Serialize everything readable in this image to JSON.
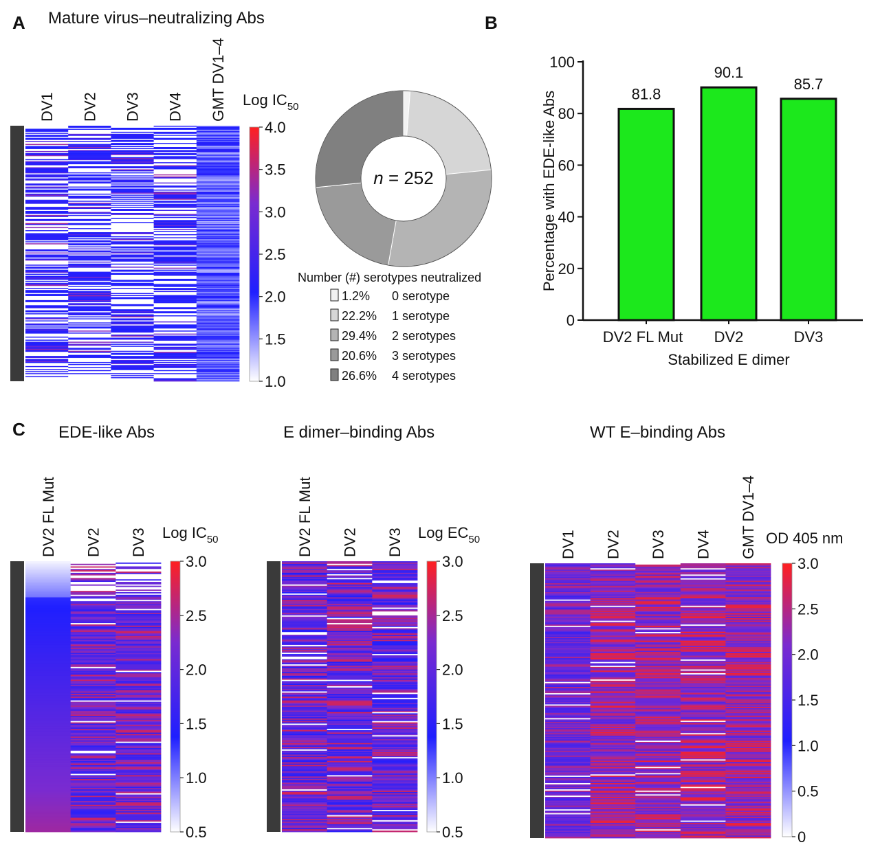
{
  "panels": {
    "A": {
      "letter": "A",
      "title": "Mature virus–neutralizing Abs",
      "heatmap": {
        "columns": [
          "DV1",
          "DV2",
          "DV3",
          "DV4",
          "GMT DV1–4"
        ],
        "colorbar": {
          "title": "Log IC",
          "sub": "50",
          "ticks": [
            "4.0",
            "3.5",
            "3.0",
            "2.5",
            "2.0",
            "1.5",
            "1.0"
          ]
        }
      },
      "donut": {
        "center_prefix": "n",
        "center_suffix": " = 252",
        "legend_title": "Number (#) serotypes neutralized",
        "slices": [
          {
            "percent": 1.2,
            "pct_label": "1.2%",
            "label": "0 serotype",
            "color": "#f2f2f2"
          },
          {
            "percent": 22.2,
            "pct_label": "22.2%",
            "label": "1 serotype",
            "color": "#d6d6d6"
          },
          {
            "percent": 29.4,
            "pct_label": "29.4%",
            "label": "2 serotypes",
            "color": "#b4b4b4"
          },
          {
            "percent": 20.6,
            "pct_label": "20.6%",
            "label": "3 serotypes",
            "color": "#9a9a9a"
          },
          {
            "percent": 26.6,
            "pct_label": "26.6%",
            "label": "4 serotypes",
            "color": "#808080"
          }
        ]
      }
    },
    "B": {
      "letter": "B",
      "xlabel": "Stabilized E dimer",
      "ylabel": "Percentage with EDE-like Abs",
      "yticks": [
        "100",
        "80",
        "60",
        "40",
        "20",
        "0"
      ],
      "bar_color": "#1ce81c"
    },
    "C": {
      "letter": "C",
      "heatmaps": [
        {
          "title": "EDE-like Abs",
          "columns": [
            "DV2 FL Mut",
            "DV2",
            "DV3"
          ],
          "cb_title": "Log IC",
          "cb_sub": "50",
          "cb_ticks": [
            "3.0",
            "2.5",
            "2.0",
            "1.5",
            "1.0",
            "0.5"
          ]
        },
        {
          "title": "E dimer–binding Abs",
          "columns": [
            "DV2 FL Mut",
            "DV2",
            "DV3"
          ],
          "cb_title": "Log EC",
          "cb_sub": "50",
          "cb_ticks": [
            "3.0",
            "2.5",
            "2.0",
            "1.5",
            "1.0",
            "0.5"
          ]
        },
        {
          "title": "WT E–binding Abs",
          "columns": [
            "DV1",
            "DV2",
            "DV3",
            "DV4",
            "GMT DV1–4"
          ],
          "cb_title": "OD 405 nm",
          "cb_sub": "",
          "cb_ticks": [
            "3.0",
            "2.5",
            "2.0",
            "1.5",
            "1.0",
            "0.5",
            "0"
          ]
        }
      ]
    }
  },
  "chart_data": [
    {
      "type": "heatmap",
      "title": "Mature virus–neutralizing Abs",
      "columns": [
        "DV1",
        "DV2",
        "DV3",
        "DV4",
        "GMT DV1–4"
      ],
      "n_rows": 252,
      "value_label": "Log IC50",
      "color_range": [
        1.0,
        4.0
      ],
      "colormap": [
        "#ffffff",
        "#1f1fff",
        "#ff2020"
      ]
    },
    {
      "type": "pie",
      "title": "Number (#) serotypes neutralized",
      "labels": [
        "0 serotype",
        "1 serotype",
        "2 serotypes",
        "3 serotypes",
        "4 serotypes"
      ],
      "values": [
        1.2,
        22.2,
        29.4,
        20.6,
        26.6
      ],
      "n": 252
    },
    {
      "type": "bar",
      "categories": [
        "DV2 FL Mut",
        "DV2",
        "DV3"
      ],
      "values": [
        81.8,
        90.1,
        85.7
      ],
      "value_labels": [
        "81.8",
        "90.1",
        "85.7"
      ],
      "xlabel": "Stabilized E dimer",
      "ylabel": "Percentage with EDE-like Abs",
      "ylim": [
        0,
        100
      ]
    },
    {
      "type": "heatmap",
      "title": "EDE-like Abs",
      "columns": [
        "DV2 FL Mut",
        "DV2",
        "DV3"
      ],
      "value_label": "Log IC50",
      "color_range": [
        0.5,
        3.0
      ]
    },
    {
      "type": "heatmap",
      "title": "E dimer–binding Abs",
      "columns": [
        "DV2 FL Mut",
        "DV2",
        "DV3"
      ],
      "value_label": "Log EC50",
      "color_range": [
        0.5,
        3.0
      ]
    },
    {
      "type": "heatmap",
      "title": "WT E–binding Abs",
      "columns": [
        "DV1",
        "DV2",
        "DV3",
        "DV4",
        "GMT DV1–4"
      ],
      "value_label": "OD 405 nm",
      "color_range": [
        0,
        3.0
      ]
    }
  ]
}
